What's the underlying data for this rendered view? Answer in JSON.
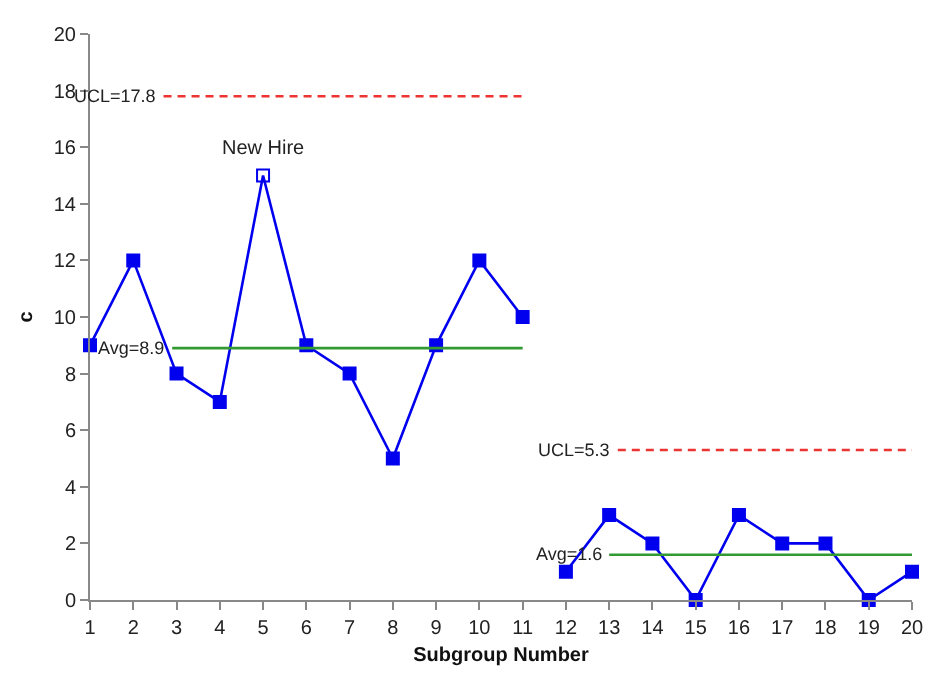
{
  "chart_data": {
    "type": "line",
    "xlabel": "Subgroup Number",
    "ylabel": "c",
    "xlim": [
      1,
      20
    ],
    "xticks": [
      1,
      2,
      3,
      4,
      5,
      6,
      7,
      8,
      9,
      10,
      11,
      12,
      13,
      14,
      15,
      16,
      17,
      18,
      19,
      20
    ],
    "ylim": [
      0,
      20
    ],
    "yticks": [
      0,
      2,
      4,
      6,
      8,
      10,
      12,
      14,
      16,
      18,
      20
    ],
    "legend": false,
    "marker": "square",
    "series": [
      {
        "color": "#0000ee",
        "x": [
          1,
          2,
          3,
          4,
          5,
          6,
          7,
          8,
          9,
          10,
          11
        ],
        "values": [
          9,
          12,
          8,
          7,
          15,
          9,
          8,
          5,
          9,
          12,
          10
        ]
      },
      {
        "color": "#0000ee",
        "x": [
          12,
          13,
          14,
          15,
          16,
          17,
          18,
          19,
          20
        ],
        "values": [
          1,
          3,
          2,
          0,
          3,
          2,
          2,
          0,
          1
        ]
      },
      {
        "name": "UCL=17.8",
        "color": "#ee3333",
        "line_style": "dashed",
        "marker": "none",
        "x": [
          2.7,
          11
        ],
        "values": [
          17.8,
          17.8
        ]
      },
      {
        "name": "Avg=8.9",
        "color": "#339933",
        "line_style": "solid",
        "marker": "none",
        "x": [
          2.9,
          11
        ],
        "values": [
          8.9,
          8.9
        ]
      },
      {
        "name": "UCL=5.3",
        "color": "#ee3333",
        "line_style": "dashed",
        "marker": "none",
        "x": [
          13.2,
          20
        ],
        "values": [
          5.3,
          5.3
        ]
      },
      {
        "name": "Avg=1.6",
        "color": "#339933",
        "line_style": "solid",
        "marker": "none",
        "x": [
          13.0,
          20
        ],
        "values": [
          1.6,
          1.6
        ]
      }
    ],
    "annotations": [
      {
        "text": "New Hire",
        "x": 5,
        "y": 15
      }
    ]
  }
}
